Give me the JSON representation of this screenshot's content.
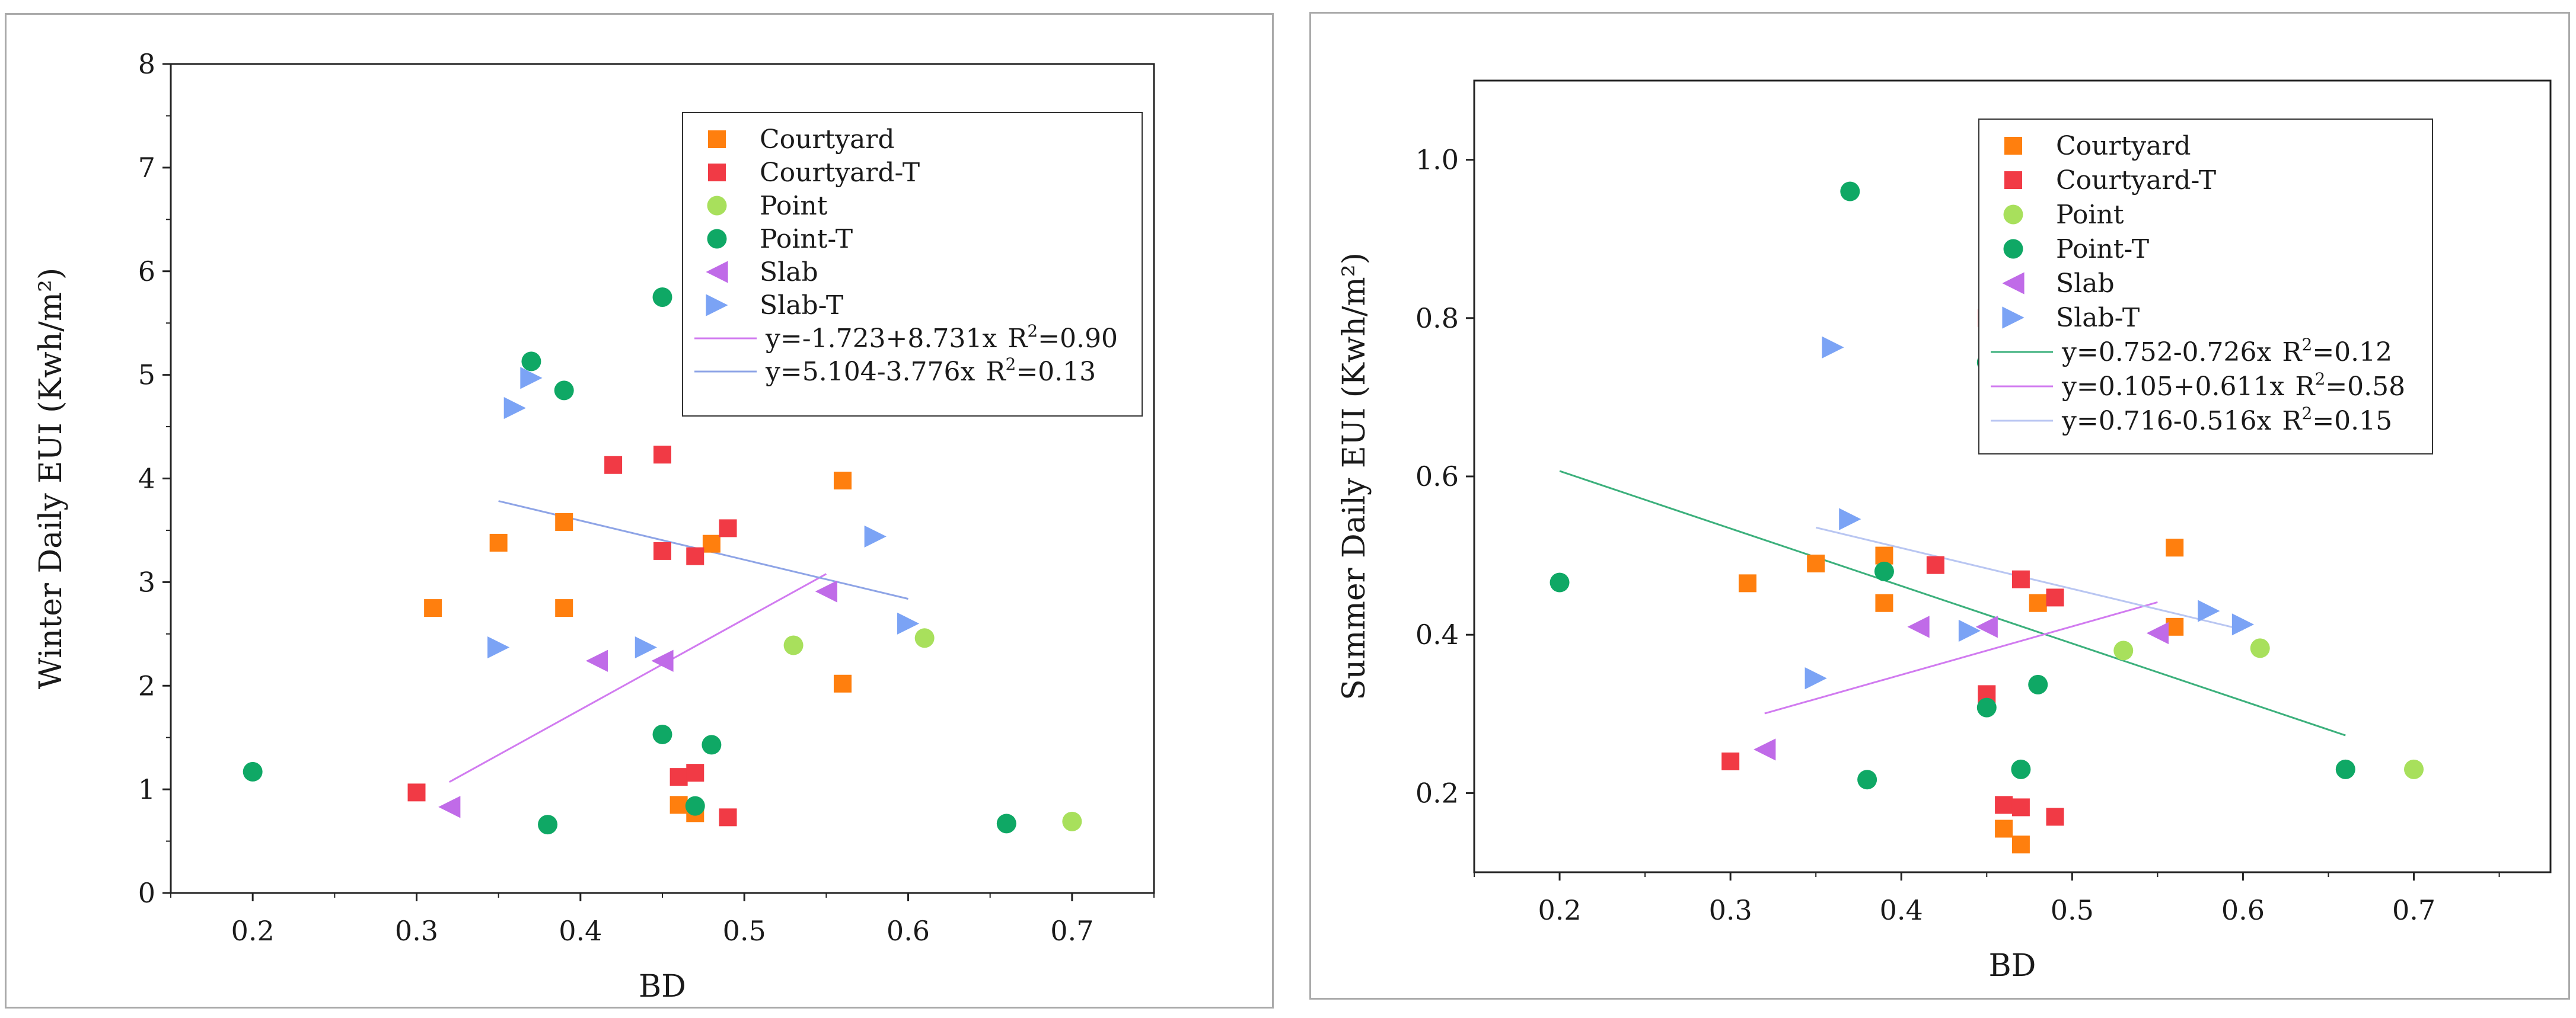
{
  "colors": {
    "courtyard": "#FF7F0E",
    "courtyard_t": "#F13A45",
    "point": "#A8E05C",
    "point_t": "#0FA865",
    "slab": "#C06BE8",
    "slab_t": "#7BA3F5",
    "fit_green": "#3CB07C",
    "fit_purple": "#D17BF0",
    "fit_blue": "#8EA4E6",
    "fit_blue_light": "#B9C6F2"
  },
  "chart_data": [
    {
      "type": "scatter",
      "title": "",
      "xlabel": "BD",
      "ylabel": "Winter Daily EUI  (Kwh/m²)",
      "xlim": [
        0.15,
        0.75
      ],
      "ylim": [
        0,
        8
      ],
      "x_ticks": [
        "0.2",
        "0.3",
        "0.4",
        "0.5",
        "0.6",
        "0.7"
      ],
      "y_ticks": [
        "0",
        "1",
        "2",
        "3",
        "4",
        "5",
        "6",
        "7",
        "8"
      ],
      "grid": false,
      "legend_position": "top-right",
      "series": [
        {
          "name": "Courtyard",
          "marker": "square",
          "color_key": "courtyard",
          "x": [
            0.31,
            0.35,
            0.39,
            0.39,
            0.46,
            0.47,
            0.48,
            0.56,
            0.56
          ],
          "y": [
            2.75,
            3.38,
            3.58,
            2.75,
            0.85,
            0.77,
            3.37,
            3.98,
            2.02
          ]
        },
        {
          "name": "Courtyard-T",
          "marker": "square",
          "color_key": "courtyard_t",
          "x": [
            0.3,
            0.42,
            0.45,
            0.45,
            0.46,
            0.47,
            0.47,
            0.49,
            0.49
          ],
          "y": [
            0.97,
            4.13,
            4.23,
            3.3,
            1.12,
            1.16,
            3.25,
            3.52,
            0.73
          ]
        },
        {
          "name": "Point",
          "marker": "circle",
          "color_key": "point",
          "x": [
            0.53,
            0.61,
            0.7
          ],
          "y": [
            2.39,
            2.46,
            0.69
          ]
        },
        {
          "name": "Point-T",
          "marker": "circle",
          "color_key": "point_t",
          "x": [
            0.2,
            0.37,
            0.38,
            0.39,
            0.45,
            0.45,
            0.47,
            0.48,
            0.66
          ],
          "y": [
            1.17,
            5.13,
            0.66,
            4.85,
            5.75,
            1.53,
            0.84,
            1.43,
            0.67
          ]
        },
        {
          "name": "Slab",
          "marker": "triangle-left",
          "color_key": "slab",
          "x": [
            0.32,
            0.41,
            0.45,
            0.55
          ],
          "y": [
            0.83,
            2.24,
            2.24,
            2.91
          ]
        },
        {
          "name": "Slab-T",
          "marker": "triangle-right",
          "color_key": "slab_t",
          "x": [
            0.35,
            0.36,
            0.37,
            0.44,
            0.58,
            0.6
          ],
          "y": [
            2.37,
            4.68,
            4.97,
            2.37,
            3.44,
            2.6
          ]
        }
      ],
      "fit_lines": [
        {
          "label": "y=-1.723+8.731x",
          "r2_label": "R",
          "r2_value": "=0.90",
          "color_key": "fit_purple",
          "intercept": -1.723,
          "slope": 8.731,
          "x_range": [
            0.32,
            0.55
          ]
        },
        {
          "label": "y=5.104-3.776x",
          "r2_label": "R",
          "r2_value": "=0.13",
          "color_key": "fit_blue",
          "intercept": 5.104,
          "slope": -3.776,
          "x_range": [
            0.35,
            0.6
          ]
        }
      ]
    },
    {
      "type": "scatter",
      "title": "",
      "xlabel": "BD",
      "ylabel": "Summer Daily EUI  (Kwh/m²)",
      "xlim": [
        0.15,
        0.78
      ],
      "ylim": [
        0.1,
        1.1
      ],
      "x_ticks": [
        "0.2",
        "0.3",
        "0.4",
        "0.5",
        "0.6",
        "0.7"
      ],
      "y_ticks": [
        "0.2",
        "0.4",
        "0.6",
        "0.8",
        "1.0"
      ],
      "grid": false,
      "legend_position": "top-right",
      "series": [
        {
          "name": "Courtyard",
          "marker": "square",
          "color_key": "courtyard",
          "x": [
            0.31,
            0.35,
            0.39,
            0.39,
            0.46,
            0.47,
            0.48,
            0.56,
            0.56
          ],
          "y": [
            0.465,
            0.49,
            0.5,
            0.44,
            0.155,
            0.135,
            0.44,
            0.51,
            0.41
          ]
        },
        {
          "name": "Courtyard-T",
          "marker": "square",
          "color_key": "courtyard_t",
          "x": [
            0.3,
            0.42,
            0.45,
            0.45,
            0.46,
            0.47,
            0.47,
            0.49,
            0.49
          ],
          "y": [
            0.24,
            0.488,
            0.8,
            0.325,
            0.185,
            0.182,
            0.47,
            0.447,
            0.17
          ]
        },
        {
          "name": "Point",
          "marker": "circle",
          "color_key": "point",
          "x": [
            0.53,
            0.61,
            0.7
          ],
          "y": [
            0.38,
            0.383,
            0.23
          ]
        },
        {
          "name": "Point-T",
          "marker": "circle",
          "color_key": "point_t",
          "x": [
            0.2,
            0.37,
            0.38,
            0.39,
            0.45,
            0.45,
            0.47,
            0.48,
            0.66
          ],
          "y": [
            0.466,
            0.96,
            0.217,
            0.48,
            0.744,
            0.308,
            0.23,
            0.337,
            0.23
          ]
        },
        {
          "name": "Slab",
          "marker": "triangle-left",
          "color_key": "slab",
          "x": [
            0.32,
            0.41,
            0.45,
            0.55
          ],
          "y": [
            0.255,
            0.41,
            0.41,
            0.402
          ]
        },
        {
          "name": "Slab-T",
          "marker": "triangle-right",
          "color_key": "slab_t",
          "x": [
            0.35,
            0.36,
            0.37,
            0.44,
            0.58,
            0.6
          ],
          "y": [
            0.345,
            0.763,
            0.546,
            0.405,
            0.43,
            0.413
          ]
        }
      ],
      "fit_lines": [
        {
          "label": "y=0.752-0.726x",
          "r2_label": "R",
          "r2_value": "=0.12",
          "color_key": "fit_green",
          "intercept": 0.752,
          "slope": -0.726,
          "x_range": [
            0.2,
            0.66
          ]
        },
        {
          "label": "y=0.105+0.611x",
          "r2_label": "R",
          "r2_value": "=0.58",
          "color_key": "fit_purple",
          "intercept": 0.105,
          "slope": 0.611,
          "x_range": [
            0.32,
            0.55
          ]
        },
        {
          "label": "y=0.716-0.516x",
          "r2_label": "R",
          "r2_value": "=0.15",
          "color_key": "fit_blue_light",
          "intercept": 0.716,
          "slope": -0.516,
          "x_range": [
            0.35,
            0.6
          ]
        }
      ]
    }
  ]
}
